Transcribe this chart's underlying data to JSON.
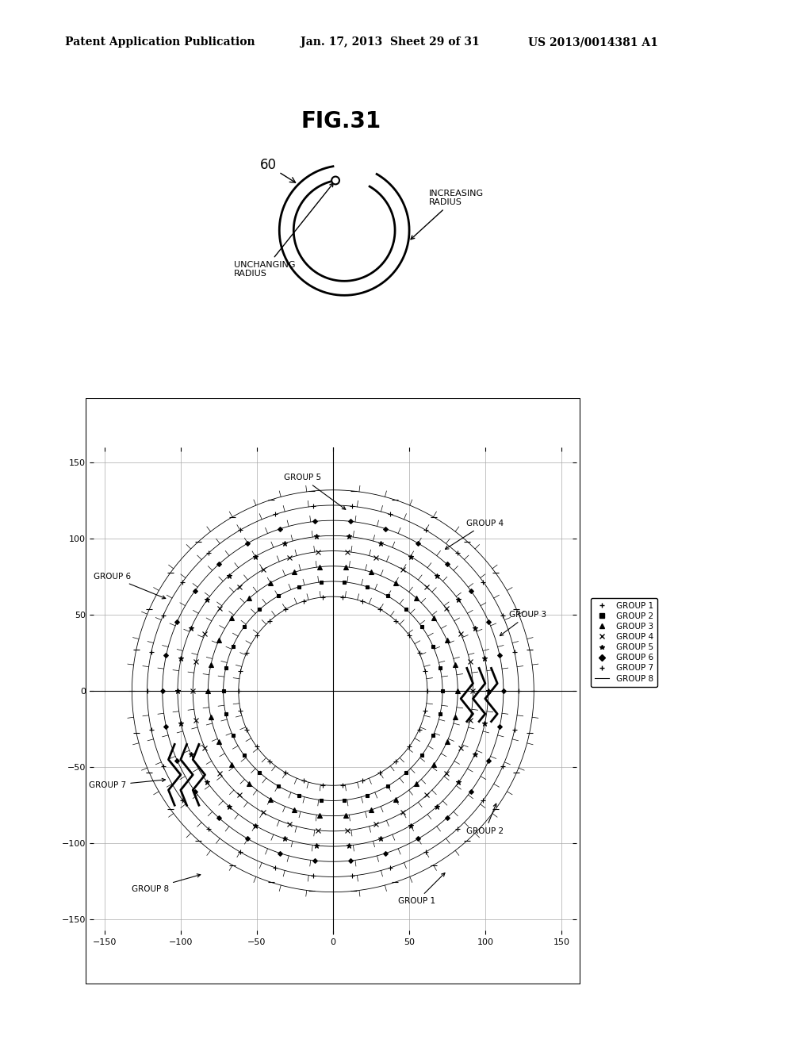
{
  "header_left": "Patent Application Publication",
  "header_mid": "Jan. 17, 2013  Sheet 29 of 31",
  "header_right": "US 2013/0014381 A1",
  "fig_title": "FIG.31",
  "spiral_label": "60",
  "label_increasing": "INCREASING\nRADIUS",
  "label_unchanging": "UNCHANGING\nRADIUS",
  "plot_xlim": [
    -160,
    160
  ],
  "plot_ylim": [
    -160,
    160
  ],
  "plot_xticks": [
    -150,
    -100,
    -50,
    0,
    50,
    100,
    150
  ],
  "plot_yticks": [
    -150,
    -100,
    -50,
    0,
    50,
    100,
    150
  ],
  "groups": [
    "GROUP 1",
    "GROUP 2",
    "GROUP 3",
    "GROUP 4",
    "GROUP 5",
    "GROUP 6",
    "GROUP 7",
    "GROUP 8"
  ],
  "group_radii": [
    62,
    72,
    82,
    92,
    102,
    112,
    122,
    132
  ],
  "background_color": "#ffffff",
  "outer_box_color": "#000000"
}
